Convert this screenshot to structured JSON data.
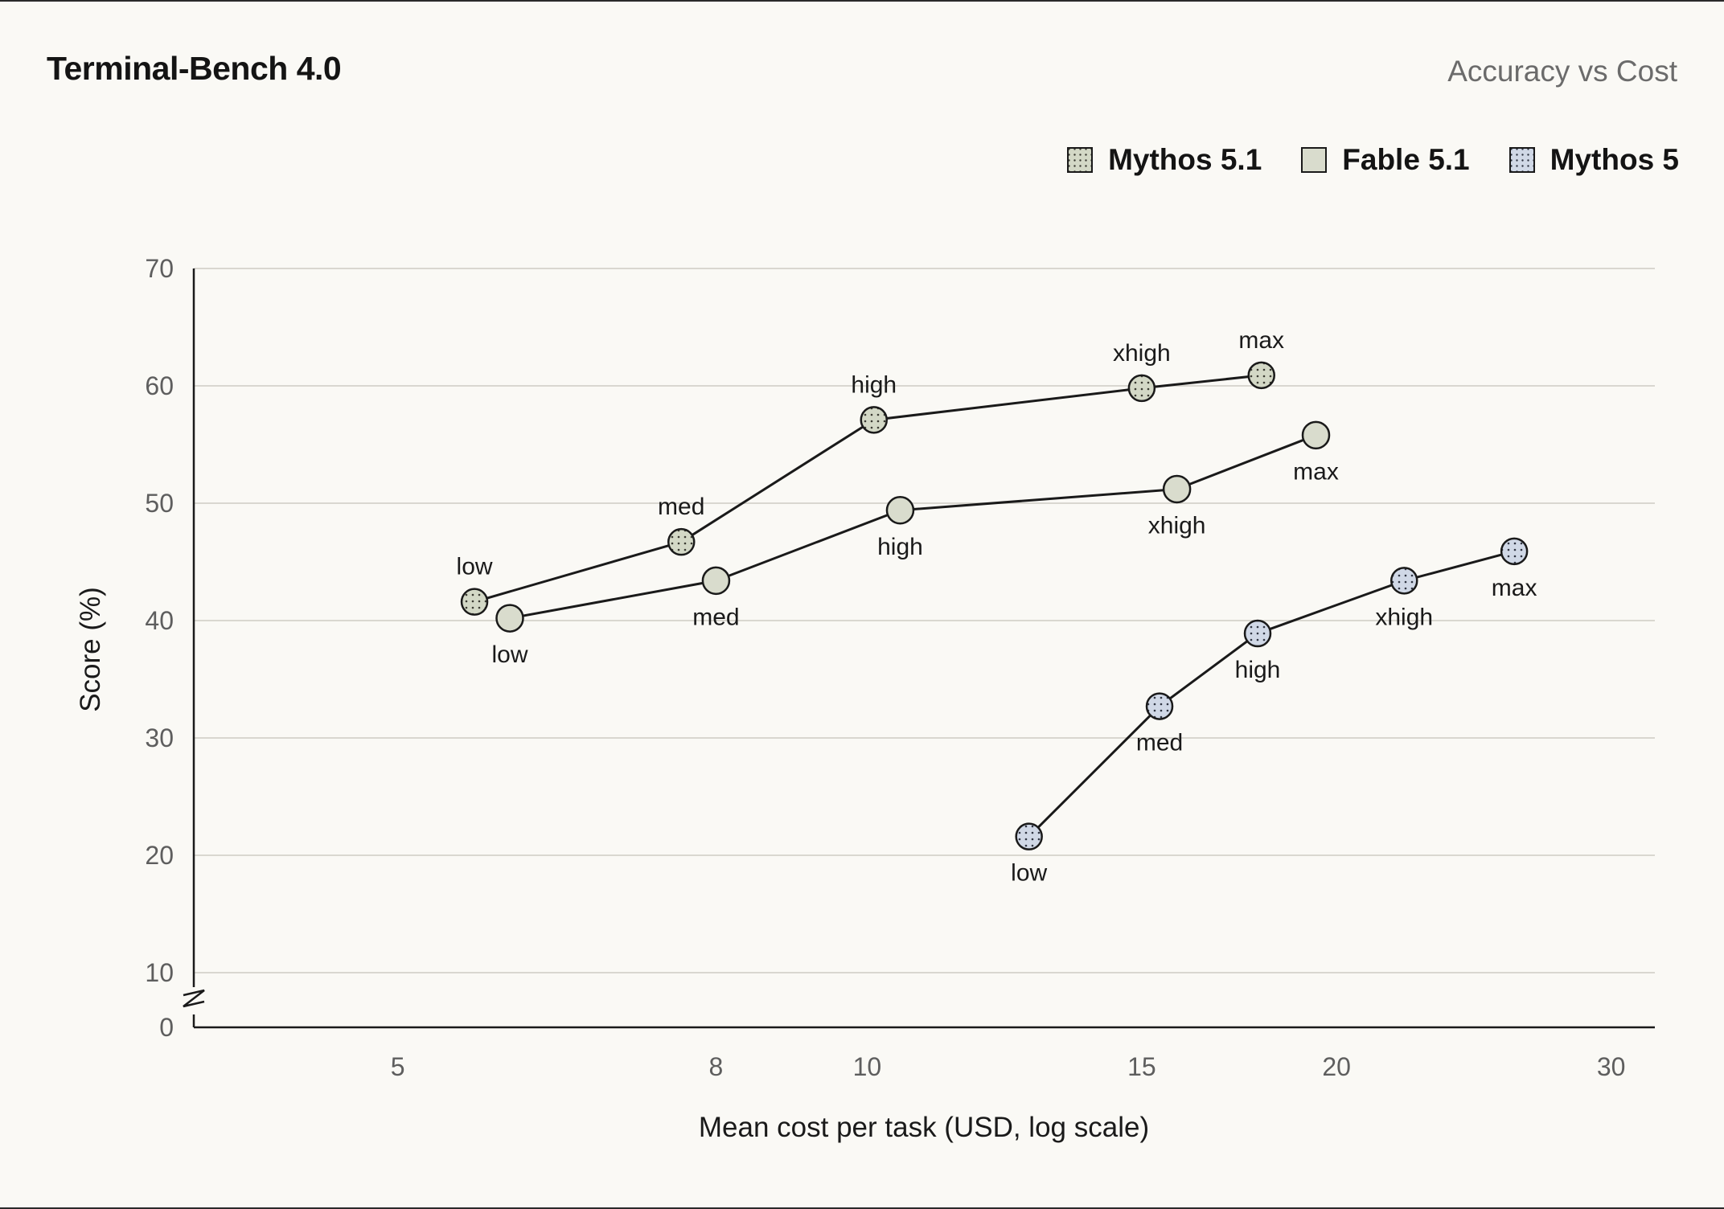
{
  "header": {
    "title": "Terminal-Bench 4.0",
    "subtitle": "Accuracy vs Cost"
  },
  "colors": {
    "background": "#faf9f5",
    "line": "#1a1a1a",
    "grid": "#d9d7d0",
    "mythos_5_1_fill": "#d3d8c6",
    "fable_5_1_fill": "#d9dccd",
    "mythos_5_fill": "#d0d8e6"
  },
  "chart_data": {
    "type": "scatter",
    "title": "Terminal-Bench 4.0",
    "subtitle": "Accuracy vs Cost",
    "xlabel": "Mean cost per task (USD, log scale)",
    "ylabel": "Score (%)",
    "x_scale": "log",
    "xlim": [
      3.7,
      32
    ],
    "ylim": [
      0,
      70
    ],
    "x_ticks": [
      5,
      8,
      10,
      15,
      20,
      30
    ],
    "y_ticks": [
      0,
      10,
      20,
      30,
      40,
      50,
      60,
      70
    ],
    "y_axis_break": true,
    "grid": "horizontal",
    "legend_position": "top-right",
    "series": [
      {
        "name": "Mythos 5.1",
        "marker": "dotted",
        "points": [
          {
            "x": 5.6,
            "y": 41.6,
            "label": "low",
            "label_pos": "above"
          },
          {
            "x": 7.6,
            "y": 46.7,
            "label": "med",
            "label_pos": "above"
          },
          {
            "x": 10.1,
            "y": 57.1,
            "label": "high",
            "label_pos": "above"
          },
          {
            "x": 15.0,
            "y": 59.8,
            "label": "xhigh",
            "label_pos": "above"
          },
          {
            "x": 17.9,
            "y": 60.9,
            "label": "max",
            "label_pos": "above"
          }
        ]
      },
      {
        "name": "Fable 5.1",
        "marker": "plain",
        "points": [
          {
            "x": 5.9,
            "y": 40.2,
            "label": "low",
            "label_pos": "below"
          },
          {
            "x": 8.0,
            "y": 43.4,
            "label": "med",
            "label_pos": "below"
          },
          {
            "x": 10.5,
            "y": 49.4,
            "label": "high",
            "label_pos": "below"
          },
          {
            "x": 15.8,
            "y": 51.2,
            "label": "xhigh",
            "label_pos": "below"
          },
          {
            "x": 19.4,
            "y": 55.8,
            "label": "max",
            "label_pos": "below"
          }
        ]
      },
      {
        "name": "Mythos 5",
        "marker": "dotted",
        "points": [
          {
            "x": 12.7,
            "y": 21.6,
            "label": "low",
            "label_pos": "below"
          },
          {
            "x": 15.4,
            "y": 32.7,
            "label": "med",
            "label_pos": "below"
          },
          {
            "x": 17.8,
            "y": 38.9,
            "label": "high",
            "label_pos": "below"
          },
          {
            "x": 22.1,
            "y": 43.4,
            "label": "xhigh",
            "label_pos": "below"
          },
          {
            "x": 26.0,
            "y": 45.9,
            "label": "max",
            "label_pos": "below"
          }
        ]
      }
    ]
  }
}
